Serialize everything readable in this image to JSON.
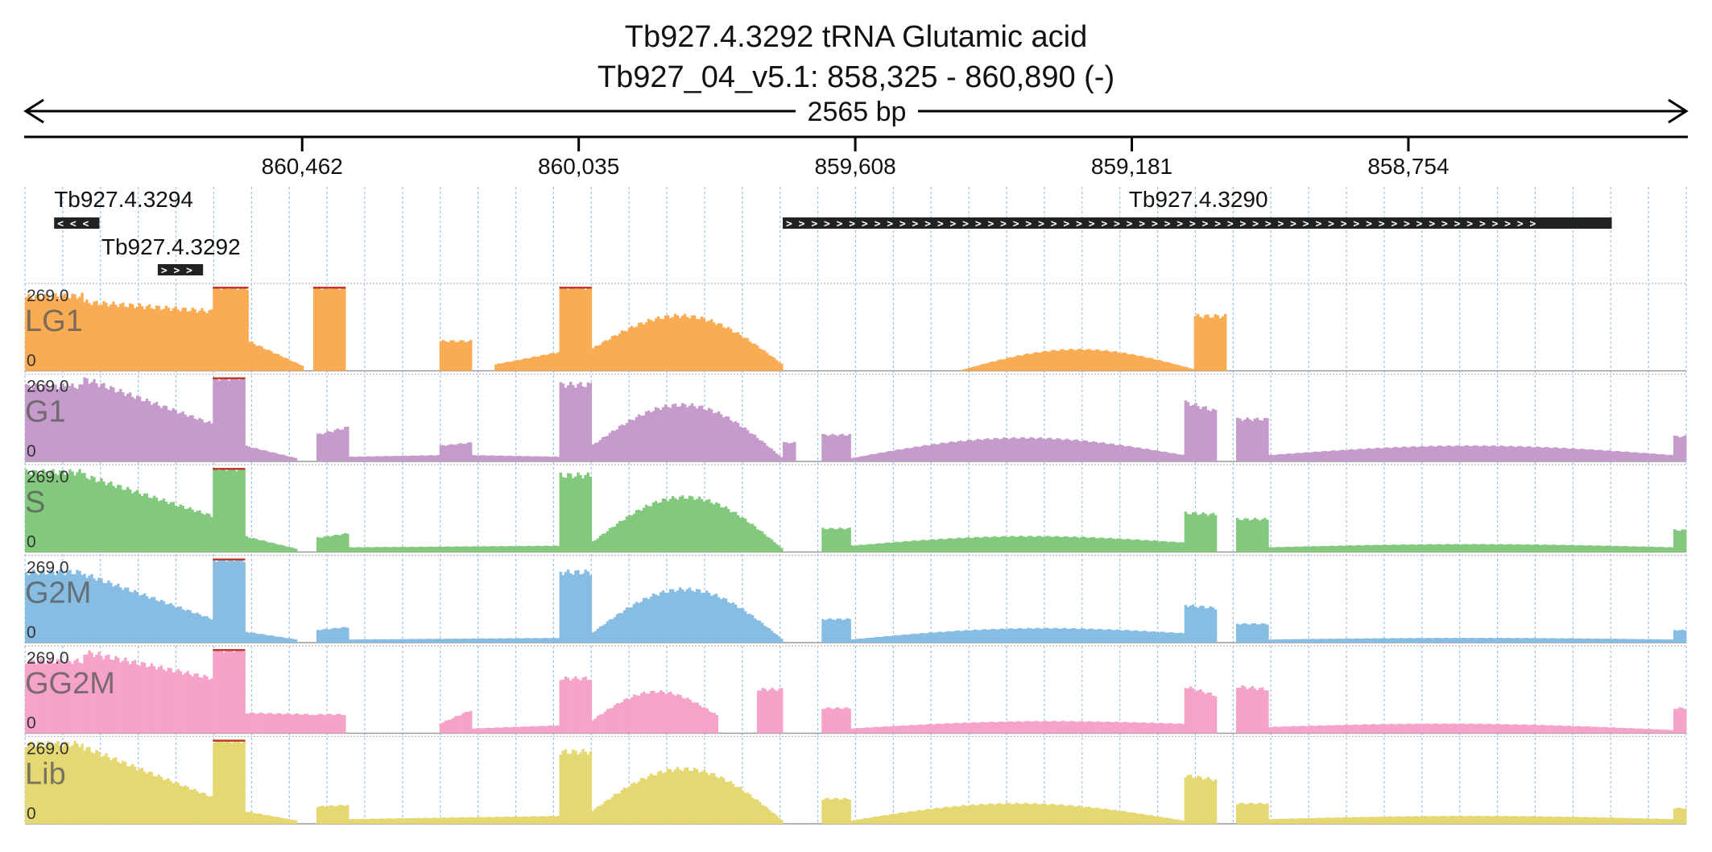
{
  "title_line1": "Tb927.4.3292  tRNA Glutamic acid",
  "title_line2": "Tb927_04_v5.1: 858,325 - 860,890 (-)",
  "span_label": "2565 bp",
  "chart_data": {
    "type": "area",
    "x_axis": {
      "reversed": true,
      "range": [
        860890,
        858325
      ],
      "ticks": [
        860462,
        860035,
        859608,
        859181,
        858754
      ],
      "tick_labels": [
        "860,462",
        "860,035",
        "859,608",
        "859,181",
        "858,754"
      ]
    },
    "genes": [
      {
        "name": "Tb927.4.3294",
        "start": 860845,
        "end": 860775,
        "strand": "-",
        "chevrons": "< < <",
        "row": 0
      },
      {
        "name": "Tb927.4.3292",
        "start": 860685,
        "end": 860615,
        "strand": "+",
        "chevrons": "> > >",
        "row": 1
      },
      {
        "name": "Tb927.4.3290",
        "start": 859720,
        "end": 858440,
        "strand": "+",
        "chevrons": ">",
        "row": 0
      }
    ],
    "ylim": [
      0,
      269.0
    ],
    "y_scale_labels": {
      "max": "269.0",
      "min": "0"
    },
    "grid": "dotted-vertical",
    "series": [
      {
        "name": "LG1",
        "color": "#f9ac54",
        "segments": [
          {
            "from": 860890,
            "to": 860800,
            "shape": "flat",
            "v0": 236,
            "v1": 240
          },
          {
            "from": 860800,
            "to": 860600,
            "shape": "decline",
            "v0": 220,
            "v1": 190
          },
          {
            "from": 860600,
            "to": 860545,
            "shape": "flat",
            "v0": 269,
            "v1": 269
          },
          {
            "from": 860545,
            "to": 860460,
            "shape": "decline",
            "v0": 95,
            "v1": 15
          },
          {
            "from": 860445,
            "to": 860395,
            "shape": "flat",
            "v0": 269,
            "v1": 269
          },
          {
            "from": 860250,
            "to": 860200,
            "shape": "flat",
            "v0": 95,
            "v1": 95
          },
          {
            "from": 860165,
            "to": 860065,
            "shape": "decline",
            "v0": 20,
            "v1": 60
          },
          {
            "from": 860065,
            "to": 860015,
            "shape": "flat",
            "v0": 269,
            "v1": 269
          },
          {
            "from": 860015,
            "to": 859720,
            "shape": "hump",
            "v0": 70,
            "v1": 20,
            "peak": 200
          },
          {
            "from": 859720,
            "to": 859720,
            "shape": "flat",
            "v0": 0,
            "v1": 0
          },
          {
            "from": 859620,
            "to": 859620,
            "shape": "flat",
            "v0": 0,
            "v1": 0
          },
          {
            "from": 859445,
            "to": 859085,
            "shape": "hump",
            "v0": 2,
            "v1": 5,
            "peak": 70
          },
          {
            "from": 859085,
            "to": 859035,
            "shape": "flat",
            "v0": 175,
            "v1": 175
          }
        ]
      },
      {
        "name": "G1",
        "color": "#c49bca",
        "segments": [
          {
            "from": 860890,
            "to": 860800,
            "shape": "flat",
            "v0": 240,
            "v1": 240
          },
          {
            "from": 860800,
            "to": 860600,
            "shape": "decline",
            "v0": 265,
            "v1": 120
          },
          {
            "from": 860600,
            "to": 860550,
            "shape": "flat",
            "v0": 269,
            "v1": 269
          },
          {
            "from": 860550,
            "to": 860470,
            "shape": "decline",
            "v0": 50,
            "v1": 10
          },
          {
            "from": 860440,
            "to": 860390,
            "shape": "flat",
            "v0": 85,
            "v1": 110
          },
          {
            "from": 860390,
            "to": 860250,
            "shape": "decline",
            "v0": 15,
            "v1": 20
          },
          {
            "from": 860250,
            "to": 860200,
            "shape": "flat",
            "v0": 50,
            "v1": 60
          },
          {
            "from": 860200,
            "to": 860065,
            "shape": "decline",
            "v0": 20,
            "v1": 15
          },
          {
            "from": 860065,
            "to": 860015,
            "shape": "flat",
            "v0": 245,
            "v1": 245
          },
          {
            "from": 860015,
            "to": 859720,
            "shape": "hump",
            "v0": 50,
            "v1": 10,
            "peak": 200
          },
          {
            "from": 859720,
            "to": 859700,
            "shape": "flat",
            "v0": 60,
            "v1": 60
          },
          {
            "from": 859660,
            "to": 859615,
            "shape": "flat",
            "v0": 85,
            "v1": 85
          },
          {
            "from": 859615,
            "to": 859100,
            "shape": "hump",
            "v0": 10,
            "v1": 20,
            "peak": 80
          },
          {
            "from": 859100,
            "to": 859050,
            "shape": "flat",
            "v0": 190,
            "v1": 160
          },
          {
            "from": 859020,
            "to": 858970,
            "shape": "flat",
            "v0": 135,
            "v1": 135
          },
          {
            "from": 858970,
            "to": 858345,
            "shape": "hump",
            "v0": 20,
            "v1": 20,
            "peak": 50
          },
          {
            "from": 858345,
            "to": 858325,
            "shape": "flat",
            "v0": 80,
            "v1": 80
          }
        ]
      },
      {
        "name": "S",
        "color": "#82c97e",
        "segments": [
          {
            "from": 860890,
            "to": 860800,
            "shape": "flat",
            "v0": 255,
            "v1": 255
          },
          {
            "from": 860800,
            "to": 860600,
            "shape": "decline",
            "v0": 245,
            "v1": 115
          },
          {
            "from": 860600,
            "to": 860550,
            "shape": "flat",
            "v0": 269,
            "v1": 269
          },
          {
            "from": 860550,
            "to": 860470,
            "shape": "decline",
            "v0": 50,
            "v1": 10
          },
          {
            "from": 860440,
            "to": 860390,
            "shape": "flat",
            "v0": 45,
            "v1": 60
          },
          {
            "from": 860390,
            "to": 860065,
            "shape": "decline",
            "v0": 15,
            "v1": 20
          },
          {
            "from": 860065,
            "to": 860015,
            "shape": "flat",
            "v0": 245,
            "v1": 245
          },
          {
            "from": 860015,
            "to": 859720,
            "shape": "hump",
            "v0": 30,
            "v1": 10,
            "peak": 185
          },
          {
            "from": 859660,
            "to": 859615,
            "shape": "flat",
            "v0": 75,
            "v1": 75
          },
          {
            "from": 859615,
            "to": 859100,
            "shape": "hump",
            "v0": 20,
            "v1": 30,
            "peak": 55
          },
          {
            "from": 859100,
            "to": 859050,
            "shape": "flat",
            "v0": 125,
            "v1": 120
          },
          {
            "from": 859020,
            "to": 858970,
            "shape": "flat",
            "v0": 105,
            "v1": 105
          },
          {
            "from": 858970,
            "to": 858345,
            "shape": "hump",
            "v0": 15,
            "v1": 15,
            "peak": 25
          },
          {
            "from": 858345,
            "to": 858325,
            "shape": "flat",
            "v0": 70,
            "v1": 70
          }
        ]
      },
      {
        "name": "G2M",
        "color": "#87bde3",
        "segments": [
          {
            "from": 860890,
            "to": 860800,
            "shape": "flat",
            "v0": 225,
            "v1": 225
          },
          {
            "from": 860800,
            "to": 860600,
            "shape": "decline",
            "v0": 220,
            "v1": 75
          },
          {
            "from": 860600,
            "to": 860550,
            "shape": "flat",
            "v0": 269,
            "v1": 269
          },
          {
            "from": 860550,
            "to": 860470,
            "shape": "decline",
            "v0": 35,
            "v1": 10
          },
          {
            "from": 860440,
            "to": 860390,
            "shape": "flat",
            "v0": 40,
            "v1": 50
          },
          {
            "from": 860390,
            "to": 860065,
            "shape": "decline",
            "v0": 10,
            "v1": 15
          },
          {
            "from": 860065,
            "to": 860015,
            "shape": "flat",
            "v0": 225,
            "v1": 225
          },
          {
            "from": 860015,
            "to": 859720,
            "shape": "hump",
            "v0": 30,
            "v1": 10,
            "peak": 180
          },
          {
            "from": 859660,
            "to": 859615,
            "shape": "flat",
            "v0": 75,
            "v1": 75
          },
          {
            "from": 859615,
            "to": 859100,
            "shape": "hump",
            "v0": 10,
            "v1": 30,
            "peak": 55
          },
          {
            "from": 859100,
            "to": 859050,
            "shape": "flat",
            "v0": 120,
            "v1": 110
          },
          {
            "from": 859020,
            "to": 858970,
            "shape": "flat",
            "v0": 60,
            "v1": 60
          },
          {
            "from": 858970,
            "to": 858345,
            "shape": "hump",
            "v0": 10,
            "v1": 10,
            "peak": 15
          },
          {
            "from": 858345,
            "to": 858325,
            "shape": "flat",
            "v0": 40,
            "v1": 40
          }
        ]
      },
      {
        "name": "GG2M",
        "color": "#f5a3c8",
        "segments": [
          {
            "from": 860890,
            "to": 860800,
            "shape": "flat",
            "v0": 230,
            "v1": 230
          },
          {
            "from": 860800,
            "to": 860600,
            "shape": "decline",
            "v0": 260,
            "v1": 175
          },
          {
            "from": 860600,
            "to": 860550,
            "shape": "flat",
            "v0": 269,
            "v1": 269
          },
          {
            "from": 860550,
            "to": 860445,
            "shape": "flat",
            "v0": 65,
            "v1": 60
          },
          {
            "from": 860445,
            "to": 860395,
            "shape": "flat",
            "v0": 60,
            "v1": 60
          },
          {
            "from": 860250,
            "to": 860200,
            "shape": "flat",
            "v0": 30,
            "v1": 75
          },
          {
            "from": 860200,
            "to": 860065,
            "shape": "decline",
            "v0": 15,
            "v1": 25
          },
          {
            "from": 860065,
            "to": 860015,
            "shape": "flat",
            "v0": 175,
            "v1": 175
          },
          {
            "from": 860015,
            "to": 859820,
            "shape": "hump",
            "v0": 40,
            "v1": 55,
            "peak": 140
          },
          {
            "from": 859820,
            "to": 859780,
            "shape": "flat",
            "v0": 0,
            "v1": 0
          },
          {
            "from": 859760,
            "to": 859720,
            "shape": "flat",
            "v0": 140,
            "v1": 140
          },
          {
            "from": 859660,
            "to": 859615,
            "shape": "flat",
            "v0": 80,
            "v1": 80
          },
          {
            "from": 859615,
            "to": 859100,
            "shape": "hump",
            "v0": 15,
            "v1": 30,
            "peak": 45
          },
          {
            "from": 859100,
            "to": 859050,
            "shape": "flat",
            "v0": 150,
            "v1": 120
          },
          {
            "from": 859020,
            "to": 858970,
            "shape": "flat",
            "v0": 150,
            "v1": 140
          },
          {
            "from": 858970,
            "to": 858345,
            "shape": "hump",
            "v0": 20,
            "v1": 10,
            "peak": 35
          },
          {
            "from": 858345,
            "to": 858325,
            "shape": "flat",
            "v0": 80,
            "v1": 80
          }
        ]
      },
      {
        "name": "Lib",
        "color": "#e5d872",
        "segments": [
          {
            "from": 860890,
            "to": 860800,
            "shape": "flat",
            "v0": 255,
            "v1": 255
          },
          {
            "from": 860800,
            "to": 860600,
            "shape": "decline",
            "v0": 245,
            "v1": 85
          },
          {
            "from": 860600,
            "to": 860550,
            "shape": "flat",
            "v0": 269,
            "v1": 269
          },
          {
            "from": 860550,
            "to": 860470,
            "shape": "decline",
            "v0": 40,
            "v1": 10
          },
          {
            "from": 860440,
            "to": 860390,
            "shape": "flat",
            "v0": 55,
            "v1": 60
          },
          {
            "from": 860390,
            "to": 860065,
            "shape": "decline",
            "v0": 15,
            "v1": 25
          },
          {
            "from": 860065,
            "to": 860015,
            "shape": "flat",
            "v0": 230,
            "v1": 230
          },
          {
            "from": 860015,
            "to": 859720,
            "shape": "hump",
            "v0": 40,
            "v1": 10,
            "peak": 190
          },
          {
            "from": 859660,
            "to": 859615,
            "shape": "flat",
            "v0": 80,
            "v1": 80
          },
          {
            "from": 859615,
            "to": 859100,
            "shape": "hump",
            "v0": 10,
            "v1": 10,
            "peak": 65
          },
          {
            "from": 859100,
            "to": 859050,
            "shape": "flat",
            "v0": 155,
            "v1": 140
          },
          {
            "from": 859020,
            "to": 858970,
            "shape": "flat",
            "v0": 65,
            "v1": 65
          },
          {
            "from": 858970,
            "to": 858345,
            "shape": "hump",
            "v0": 15,
            "v1": 15,
            "peak": 25
          },
          {
            "from": 858345,
            "to": 858325,
            "shape": "flat",
            "v0": 50,
            "v1": 50
          }
        ]
      }
    ]
  },
  "colors": {
    "axis": "#000000",
    "gene_box": "#222222",
    "grid": "#8ab7e0",
    "clip_marker": "#c0392b",
    "track_sep": "#bbbbbb"
  }
}
